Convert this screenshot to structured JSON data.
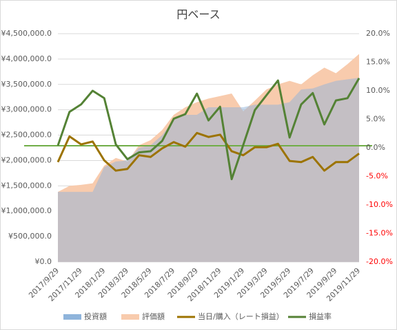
{
  "chart_data": {
    "type": "combo",
    "title": "円ベース",
    "categories": [
      "2017/9/29",
      null,
      "2017/11/29",
      null,
      "2018/1/29",
      null,
      "2018/3/29",
      null,
      "2018/5/29",
      null,
      "2018/7/29",
      null,
      "2018/9/29",
      null,
      "2018/11/29",
      null,
      "2019/1/29",
      null,
      "2019/3/29",
      null,
      "2019/5/29",
      null,
      "2019/7/29",
      null,
      "2019/9/29",
      null,
      "2019/11/29"
    ],
    "series": [
      {
        "name": "投資額",
        "type": "area",
        "color": "#8fb4db",
        "values": [
          1380000,
          1380000,
          1380000,
          1380000,
          1870000,
          1980000,
          2000000,
          2250000,
          2300000,
          2500000,
          2800000,
          2900000,
          2900000,
          3050000,
          3050000,
          3050000,
          3050000,
          3100000,
          3100000,
          3100000,
          3150000,
          3400000,
          3420000,
          3500000,
          3570000,
          3600000,
          3630000
        ]
      },
      {
        "name": "評価額",
        "type": "area",
        "color": "#f8cbad",
        "values": [
          1380000,
          1500000,
          1520000,
          1550000,
          1900000,
          2050000,
          1980000,
          2300000,
          2400000,
          2600000,
          2900000,
          3050000,
          3150000,
          3220000,
          3270000,
          3320000,
          2970000,
          3180000,
          3400000,
          3500000,
          3570000,
          3500000,
          3680000,
          3830000,
          3720000,
          3900000,
          4100000
        ]
      },
      {
        "name": "当日/購入（レート損益）",
        "type": "line",
        "axis": "y2",
        "color": "#9c7300",
        "values": [
          -2.5,
          2.0,
          0.6,
          1.1,
          -2.2,
          -4.0,
          -3.7,
          -1.3,
          -1.6,
          -0.1,
          1.0,
          0.2,
          2.6,
          1.9,
          2.3,
          -0.6,
          -1.3,
          0.1,
          0.1,
          0.7,
          -2.3,
          -2.5,
          -1.6,
          -4.0,
          -2.5,
          -2.5,
          -1.0
        ]
      },
      {
        "name": "損益率",
        "type": "line",
        "axis": "y2",
        "color": "#548235",
        "values": [
          0.4,
          6.3,
          7.6,
          10.0,
          8.7,
          0.6,
          -2.0,
          -0.8,
          -0.6,
          1.2,
          5.1,
          5.9,
          9.5,
          4.8,
          7.2,
          -5.5,
          0.5,
          6.6,
          9.2,
          11.8,
          1.8,
          7.6,
          9.6,
          4.1,
          8.3,
          8.7,
          12.2
        ]
      }
    ],
    "ylim": [
      0,
      4500000
    ],
    "yticks": [
      {
        "value": 0,
        "label": "¥0.0"
      },
      {
        "value": 500000,
        "label": "¥500,000.0"
      },
      {
        "value": 1000000,
        "label": "¥1,000,000.0"
      },
      {
        "value": 1500000,
        "label": "¥1,500,000.0"
      },
      {
        "value": 2000000,
        "label": "¥2,000,000.0"
      },
      {
        "value": 2500000,
        "label": "¥2,500,000.0"
      },
      {
        "value": 3000000,
        "label": "¥3,000,000.0"
      },
      {
        "value": 3500000,
        "label": "¥3,500,000.0"
      },
      {
        "value": 4000000,
        "label": "¥4,000,000.0"
      },
      {
        "value": 4500000,
        "label": "¥4,500,000.0"
      }
    ],
    "y2lim": [
      -20,
      20
    ],
    "y2ticks": [
      {
        "value": -20,
        "label": "-20.0%"
      },
      {
        "value": -15,
        "label": "-15.0%"
      },
      {
        "value": -10,
        "label": "-10.0%"
      },
      {
        "value": -5,
        "label": "-5.0%"
      },
      {
        "value": 0,
        "label": "0.0%"
      },
      {
        "value": 5,
        "label": "5.0%"
      },
      {
        "value": 10,
        "label": "10.0%"
      },
      {
        "value": 15,
        "label": "15.0%"
      },
      {
        "value": 20,
        "label": "20.0%"
      }
    ],
    "y2_negative_color": "#ff0000",
    "grid": true,
    "legend": "bottom"
  }
}
